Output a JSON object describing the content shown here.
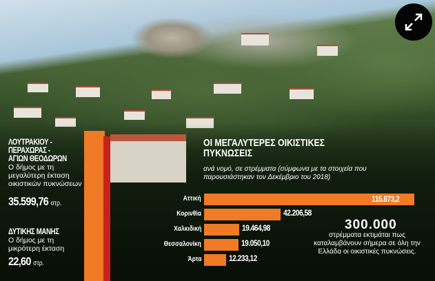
{
  "chart_data": {
    "type": "bar",
    "orientation": "horizontal",
    "title": "ΟΙ ΜΕΓΑΛΥΤΕΡΕΣ ΟΙΚΙΣΤΙΚΕΣ ΠΥΚΝΩΣΕΙΣ",
    "subtitle": "ανά νομό, σε στρέμματα (σύμφωνα με τα στοιχεία που παρουσιάστηκαν τον Δεκέμβριο του 2018)",
    "categories": [
      "Αττική",
      "Κορινθία",
      "Χαλκιδική",
      "Θεσσαλονίκη",
      "Άρτα"
    ],
    "values": [
      115873.2,
      42206.58,
      19464.98,
      19050.1,
      12233.12
    ],
    "value_labels": [
      "115.873,2",
      "42.206,58",
      "19.464,98",
      "19.050,10",
      "12.233,12"
    ],
    "bar_color": "#f07a25",
    "xlim": [
      0,
      115873.2
    ],
    "grid": false
  },
  "callout_total": {
    "value": "300.000",
    "text": "στρέμματα εκτιμάται πως καταλαμβάνουν σήμερα σε όλη την Ελλάδα οι οικιστικές πυκνώσεις."
  },
  "left_panel": {
    "largest": {
      "name": "ΛΟΥΤΡΑΚΙΟΥ - ΠΕΡΑΧΩΡΑΣ - ΑΓΙΩΝ ΘΕΟΔΩΡΩΝ",
      "name_lines": [
        "ΛΟΥΤΡΑΚΙΟΥ -",
        "ΠΕΡΑΧΩΡΑΣ -",
        "ΑΓΙΩΝ ΘΕΟΔΩΡΩΝ"
      ],
      "description": "Ο δήμος με τη μεγαλύτερη έκταση οικιστικών πυκνώσεων",
      "value": "35.599,76",
      "unit": "στρ."
    },
    "smallest": {
      "name": "ΔΥΤΙΚΗΣ ΜΑΝΗΣ",
      "description": "Ο δήμος με τη μικρότερη έκταση",
      "value": "22,60",
      "unit": "στρ."
    }
  },
  "controls": {
    "expand_icon": "expand-arrows-icon"
  }
}
